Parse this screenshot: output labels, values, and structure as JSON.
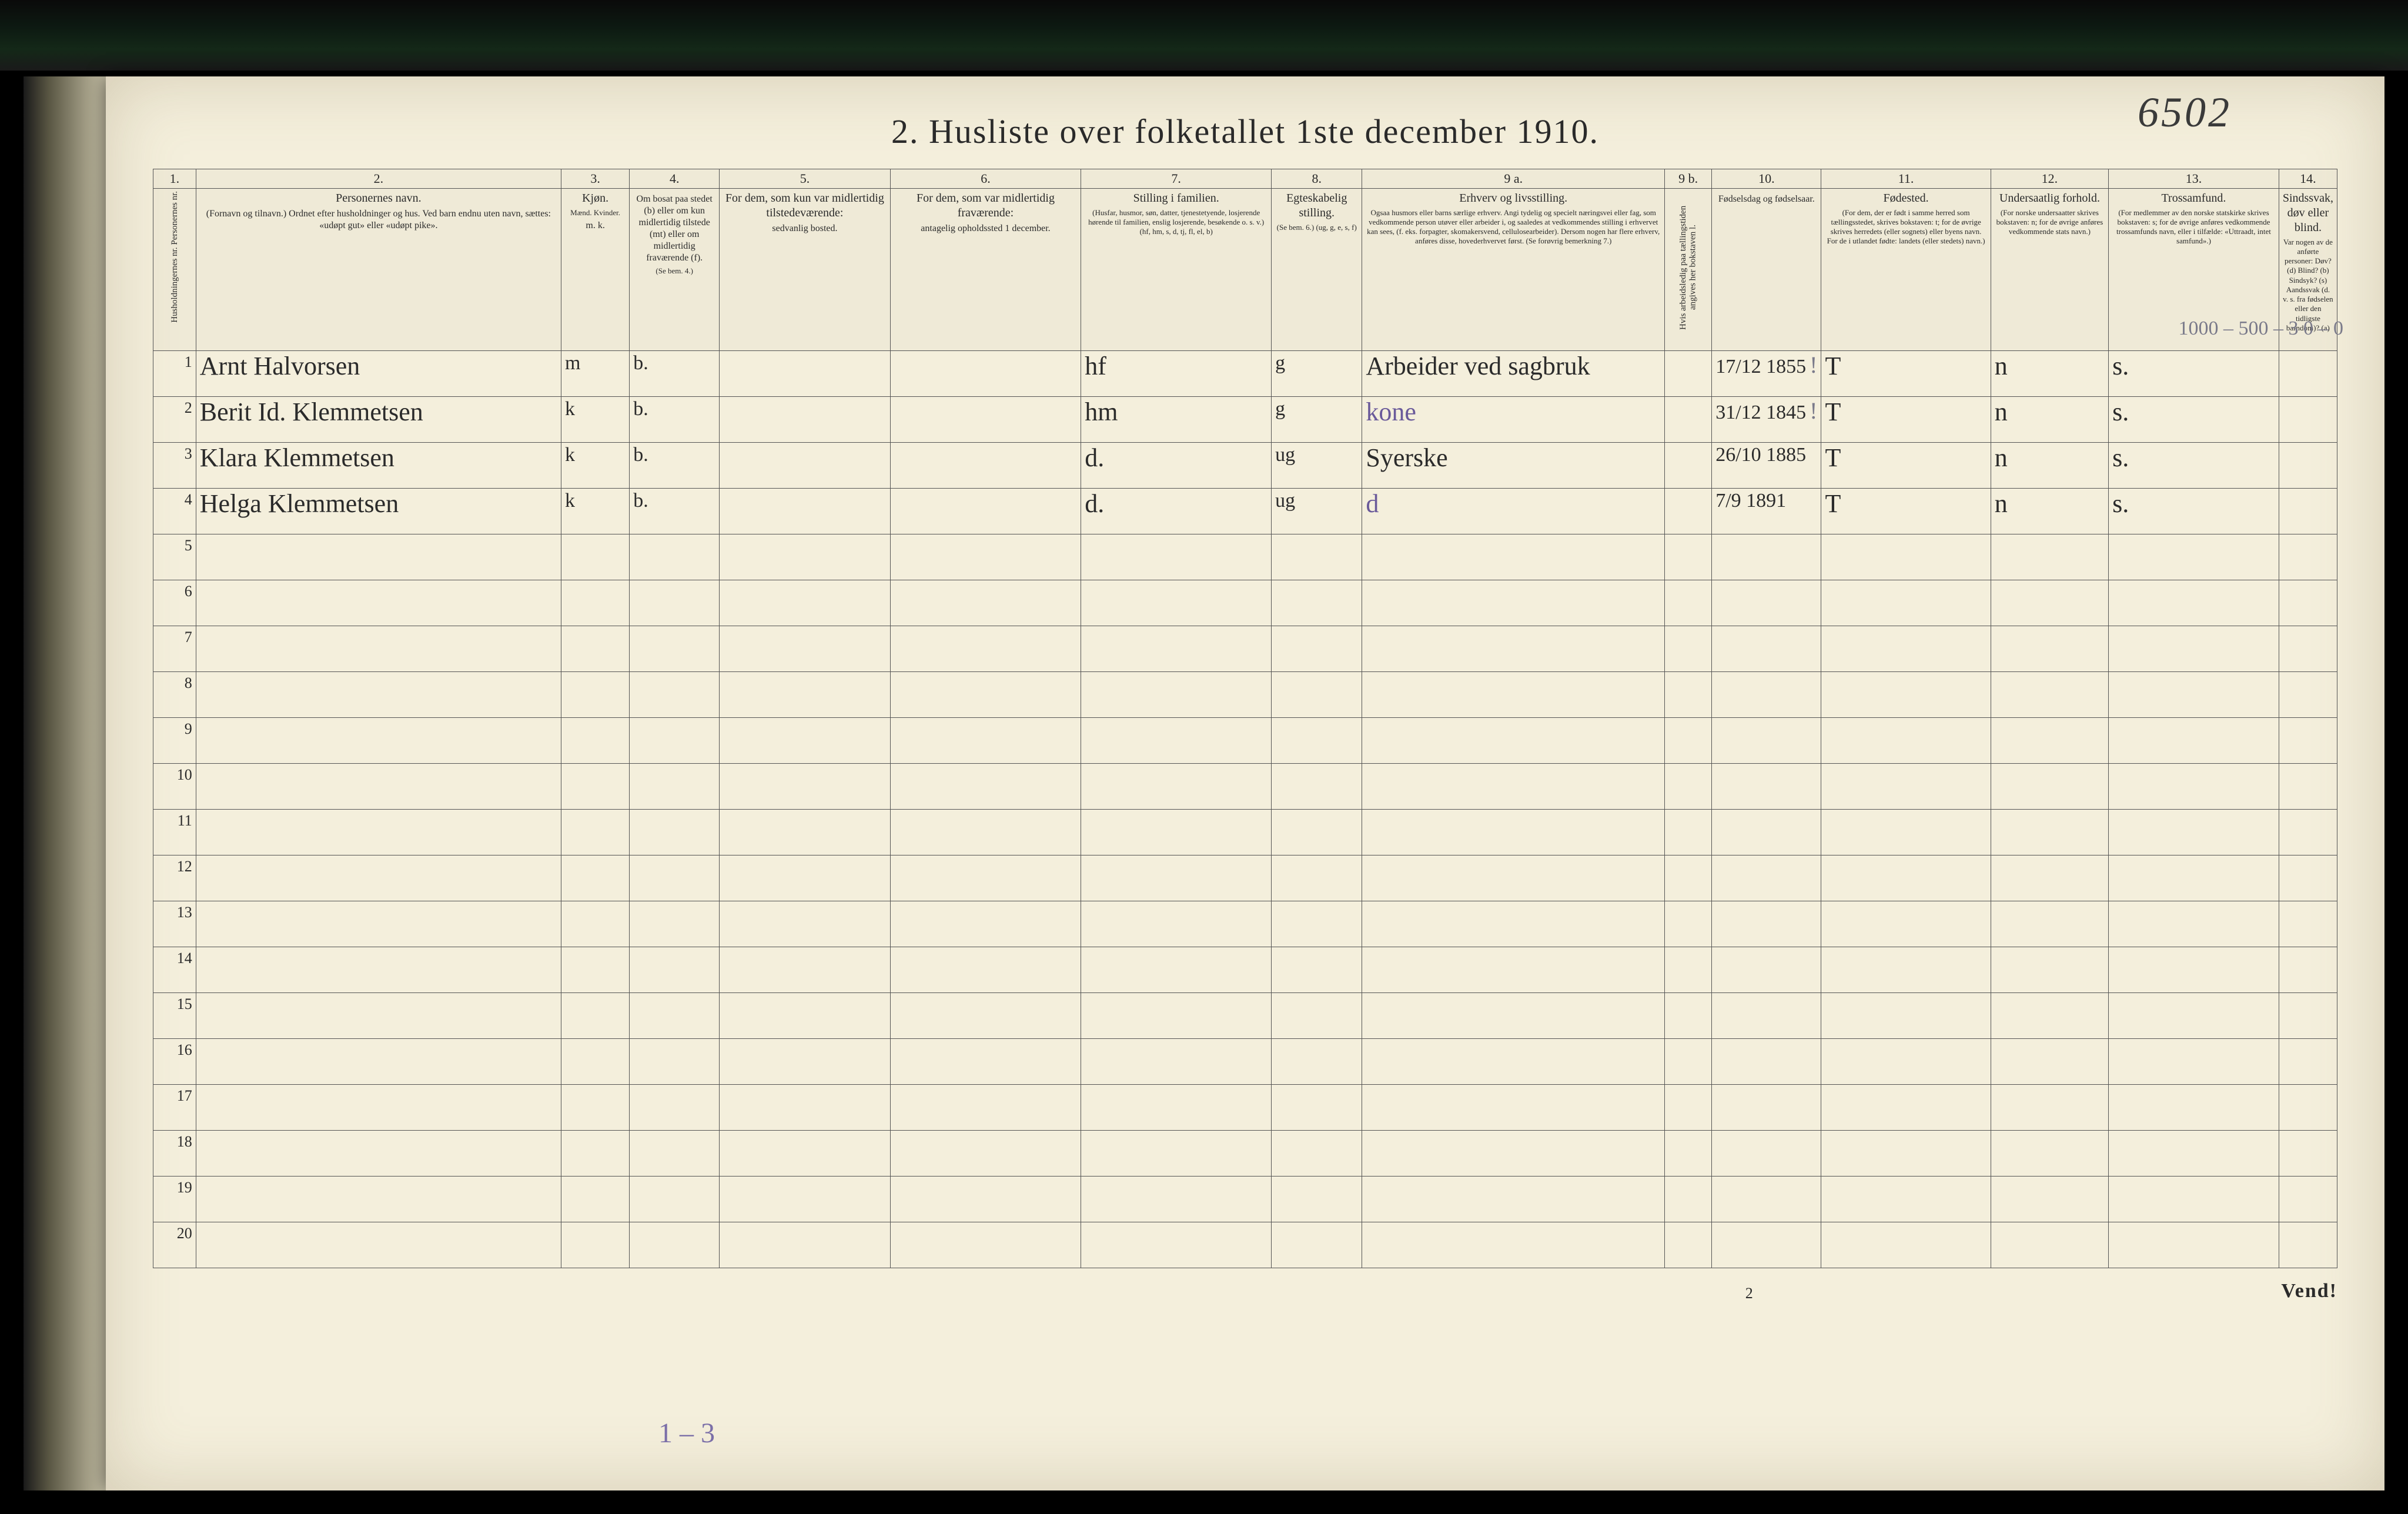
{
  "archive_number": "6502",
  "title": "2.  Husliste over folketallet 1ste december 1910.",
  "column_numbers": [
    "1.",
    "2.",
    "3.",
    "4.",
    "5.",
    "6.",
    "7.",
    "8.",
    "9 a.",
    "9 b.",
    "10.",
    "11.",
    "12.",
    "13.",
    "14."
  ],
  "headers": {
    "col1": "Husholdningernes nr.  Personernes nr.",
    "col2_title": "Personernes navn.",
    "col2_sub": "(Fornavn og tilnavn.)\nOrdnet efter husholdninger og hus.\nVed barn endnu uten navn, sættes: «udøpt gut» eller «udøpt pike».",
    "col3_title": "Kjøn.",
    "col3_sub": "Mænd.  Kvinder.",
    "col3_mk": "m.   k.",
    "col4_title": "Om bosat paa stedet (b) eller om kun midlertidig tilstede (mt) eller om midlertidig fraværende (f).",
    "col4_sub": "(Se bem. 4.)",
    "col5_title": "For dem, som kun var midlertidig tilstedeværende:",
    "col5_sub": "sedvanlig bosted.",
    "col6_title": "For dem, som var midlertidig fraværende:",
    "col6_sub": "antagelig opholdssted 1 december.",
    "col7_title": "Stilling i familien.",
    "col7_sub": "(Husfar, husmor, søn, datter, tjenestetyende, losjerende hørende til familien, enslig losjerende, besøkende o. s. v.)\n(hf, hm, s, d, tj, fl, el, b)",
    "col8_title": "Egteskabelig stilling.",
    "col8_sub": "(Se bem. 6.)\n(ug, g, e, s, f)",
    "col9a_title": "Erhverv og livsstilling.",
    "col9a_sub": "Ogsaa husmors eller barns særlige erhverv. Angi tydelig og specielt næringsvei eller fag, som vedkommende person utøver eller arbeider i, og saaledes at vedkommendes stilling i erhvervet kan sees, (f. eks. forpagter, skomakersvend, cellulosearbeider). Dersom nogen har flere erhverv, anføres disse, hovederhvervet først.\n(Se forøvrig bemerkning 7.)",
    "col9b": "Hvis arbeidsledig paa tællingstiden angives her bokstaven l.",
    "col10_title": "Fødselsdag og fødselsaar.",
    "col11_title": "Fødested.",
    "col11_sub": "(For dem, der er født i samme herred som tællingsstedet, skrives bokstaven: t; for de øvrige skrives herredets (eller sognets) eller byens navn. For de i utlandet fødte: landets (eller stedets) navn.)",
    "col12_title": "Undersaatlig forhold.",
    "col12_sub": "(For norske undersaatter skrives bokstaven: n; for de øvrige anføres vedkommende stats navn.)",
    "col13_title": "Trossamfund.",
    "col13_sub": "(For medlemmer av den norske statskirke skrives bokstaven: s; for de øvrige anføres vedkommende trossamfunds navn, eller i tilfælde: «Uttraadt, intet samfund».)",
    "col14_title": "Sindssvak, døv eller blind.",
    "col14_sub": "Var nogen av de anførte personer:\nDøv?    (d)\nBlind?   (b)\nSindsyk? (s)\nAandssvak (d. v. s. fra fødselen eller den tidligste barndom)?  (a)"
  },
  "margin_note_col14": "1000 – 500 – 3\n0  –  0",
  "rows": [
    {
      "n": "1",
      "name": "Arnt Halvorsen",
      "sex": "m",
      "bosat": "b.",
      "col5": "",
      "col6": "",
      "famstilling": "hf",
      "egte": "g",
      "erhverv": "Arbeider ved sagbruk",
      "col9b": "",
      "fodsel": "17/12 1855",
      "fodsel_note": "!",
      "fodested": "T",
      "undersaat": "n",
      "tros": "s.",
      "col14": ""
    },
    {
      "n": "2",
      "name": "Berit Id. Klemmetsen",
      "sex": "k",
      "bosat": "b.",
      "col5": "",
      "col6": "",
      "famstilling": "hm",
      "egte": "g",
      "erhverv": "kone",
      "erhverv_purple": true,
      "col9b": "",
      "fodsel": "31/12 1845",
      "fodsel_note": "!",
      "fodested": "T",
      "undersaat": "n",
      "tros": "s.",
      "col14": ""
    },
    {
      "n": "3",
      "name": "Klara Klemmetsen",
      "sex": "k",
      "bosat": "b.",
      "col5": "",
      "col6": "",
      "famstilling": "d.",
      "egte": "ug",
      "erhverv": "Syerske",
      "col9b": "",
      "fodsel": "26/10 1885",
      "fodsel_note": "",
      "fodested": "T",
      "undersaat": "n",
      "tros": "s.",
      "col14": ""
    },
    {
      "n": "4",
      "name": "Helga Klemmetsen",
      "sex": "k",
      "bosat": "b.",
      "col5": "",
      "col6": "",
      "famstilling": "d.",
      "egte": "ug",
      "erhverv": "d",
      "erhverv_purple": true,
      "col9b": "",
      "fodsel": "7/9 1891",
      "fodsel_note": "",
      "fodested": "T",
      "undersaat": "n",
      "tros": "s.",
      "col14": ""
    }
  ],
  "empty_row_start": 5,
  "empty_row_end": 20,
  "pencil_below": "1 – 3",
  "footer_page": "2",
  "footer_vend": "Vend!",
  "colors": {
    "paper": "#f4efdc",
    "ink": "#2a2a2a",
    "rule": "#555555",
    "pencil": "#7a7a8a",
    "purple_ink": "#6a5a9a",
    "frame": "#1a1a1a"
  },
  "col_widths_pct": [
    2.0,
    17.0,
    3.2,
    4.2,
    8.0,
    9.0,
    9.0,
    4.2,
    14.0,
    2.2,
    5.0,
    8.0,
    5.5,
    8.0,
    7.7
  ]
}
